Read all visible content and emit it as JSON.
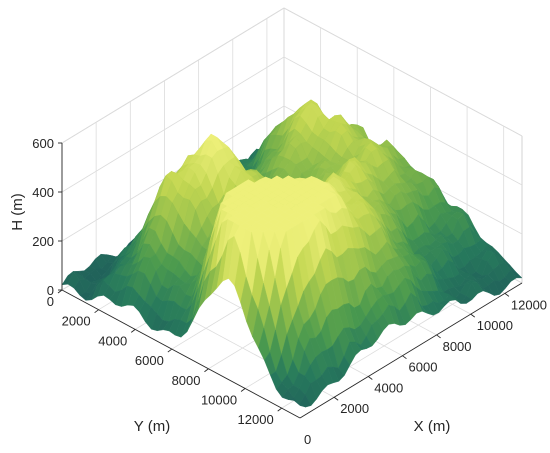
{
  "chart_data": {
    "type": "surface",
    "title": "",
    "xlabel": "X (m)",
    "ylabel": "Y (m)",
    "zlabel": "H (m)",
    "xlim": [
      0,
      13000
    ],
    "ylim": [
      0,
      13000
    ],
    "zlim": [
      0,
      600
    ],
    "xticks": [
      "2000",
      "4000",
      "6000",
      "8000",
      "10000",
      "12000"
    ],
    "xtick_values": [
      2000,
      4000,
      6000,
      8000,
      10000,
      12000
    ],
    "yticks": [
      "0",
      "2000",
      "4000",
      "6000",
      "8000",
      "10000",
      "12000"
    ],
    "ytick_values": [
      0,
      2000,
      4000,
      6000,
      8000,
      10000,
      12000
    ],
    "zticks": [
      "0",
      "200",
      "400",
      "600"
    ],
    "ztick_values": [
      0,
      200,
      400,
      600
    ],
    "x_origin_tick": "0",
    "grid": true,
    "colormap": [
      "#1f5d5a",
      "#277a5c",
      "#4b9a4e",
      "#86b84a",
      "#c2d651",
      "#eef07a"
    ],
    "peaks": [
      {
        "x": 1500,
        "y": 9000,
        "h": 560
      },
      {
        "x": 3500,
        "y": 9500,
        "h": 430
      },
      {
        "x": 6500,
        "y": 10500,
        "h": 350
      },
      {
        "x": 2500,
        "y": 8500,
        "h": 480
      },
      {
        "x": 3000,
        "y": 3500,
        "h": 390
      },
      {
        "x": 9000,
        "y": 4500,
        "h": 300
      },
      {
        "x": 5000,
        "y": 5000,
        "h": 360
      },
      {
        "x": 11000,
        "y": 6500,
        "h": 260
      },
      {
        "x": 8000,
        "y": 8000,
        "h": 300
      },
      {
        "x": 10500,
        "y": 2500,
        "h": 200
      },
      {
        "x": 12500,
        "y": 9500,
        "h": 120
      }
    ]
  }
}
